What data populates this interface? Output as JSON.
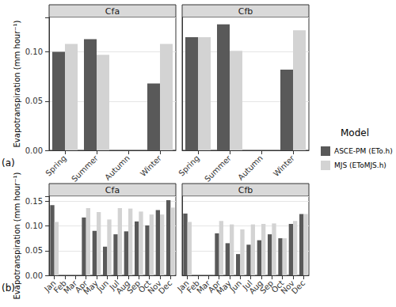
{
  "chart_data": [
    {
      "type": "bar",
      "title": "Cfa",
      "annotations": [
        "(a)"
      ],
      "y_label": "Evapotranspiration (mm hour⁻¹)",
      "legend": "right",
      "legend_title": "Model",
      "grid": true,
      "categories": [
        "Spring",
        "Summer",
        "Autumn",
        "Winter"
      ],
      "series": [
        {
          "name": "ASCE-PM (ETo.h)",
          "color": "#595959",
          "values": [
            0.1,
            0.113,
            null,
            0.068
          ]
        },
        {
          "name": "MJS (EToMJS.h)",
          "color": "#d3d3d3",
          "values": [
            0.108,
            0.097,
            null,
            0.108
          ]
        }
      ],
      "ylim": [
        0,
        0.135
      ],
      "yticks": [
        {
          "value": 0,
          "label": "0.00"
        },
        {
          "value": 0.05,
          "label": "0.05"
        },
        {
          "value": 0.1,
          "label": "0.10"
        }
      ]
    },
    {
      "type": "bar",
      "title": "Cfb",
      "grid": true,
      "categories": [
        "Spring",
        "Summer",
        "Autumn",
        "Winter"
      ],
      "series": [
        {
          "name": "ASCE-PM (ETo.h)",
          "color": "#595959",
          "values": [
            0.115,
            0.128,
            null,
            0.082
          ]
        },
        {
          "name": "MJS (EToMJS.h)",
          "color": "#d3d3d3",
          "values": [
            0.115,
            0.101,
            null,
            0.122
          ]
        }
      ],
      "ylim": [
        0,
        0.135
      ],
      "yticks": [
        {
          "value": 0,
          "label": "0.00"
        },
        {
          "value": 0.05,
          "label": "0.05"
        },
        {
          "value": 0.1,
          "label": "0.10"
        }
      ]
    },
    {
      "type": "bar",
      "title": "Cfa",
      "annotations": [
        "(b)"
      ],
      "y_label": "Evapotranspiration (mm hour⁻¹)",
      "grid": true,
      "categories": [
        "Jan",
        "Feb",
        "Mar",
        "Apr",
        "May",
        "Jun",
        "Jul",
        "Aug",
        "Sep",
        "Oct",
        "Nov",
        "Dec"
      ],
      "series": [
        {
          "name": "ASCE-PM (ETo.h)",
          "color": "#595959",
          "values": [
            0.142,
            null,
            null,
            0.117,
            0.09,
            0.058,
            0.083,
            0.089,
            0.109,
            0.101,
            0.132,
            0.152
          ]
        },
        {
          "name": "MJS (EToMJS.h)",
          "color": "#d3d3d3",
          "values": [
            0.108,
            null,
            null,
            0.136,
            0.128,
            0.113,
            0.136,
            0.135,
            0.129,
            0.123,
            0.123,
            0.137
          ]
        }
      ],
      "ylim": [
        0,
        0.16
      ],
      "yticks": [
        {
          "value": 0,
          "label": "0.00"
        },
        {
          "value": 0.05,
          "label": "0.05"
        },
        {
          "value": 0.1,
          "label": "0.10"
        },
        {
          "value": 0.15,
          "label": "0.15"
        }
      ]
    },
    {
      "type": "bar",
      "title": "Cfb",
      "grid": true,
      "categories": [
        "Jan",
        "Feb",
        "Mar",
        "Apr",
        "May",
        "Jun",
        "Jul",
        "Aug",
        "Sep",
        "Oct",
        "Nov",
        "Dec"
      ],
      "series": [
        {
          "name": "ASCE-PM (ETo.h)",
          "color": "#595959",
          "values": [
            0.125,
            null,
            null,
            0.085,
            0.065,
            0.043,
            0.062,
            0.071,
            0.083,
            0.075,
            0.104,
            0.124
          ]
        },
        {
          "name": "MJS (EToMJS.h)",
          "color": "#d3d3d3",
          "values": [
            0.108,
            null,
            null,
            0.11,
            0.103,
            0.093,
            0.103,
            0.104,
            0.105,
            0.075,
            0.11,
            0.124
          ]
        }
      ],
      "ylim": [
        0,
        0.16
      ],
      "yticks": [
        {
          "value": 0,
          "label": "0.00"
        },
        {
          "value": 0.05,
          "label": "0.05"
        },
        {
          "value": 0.1,
          "label": "0.10"
        },
        {
          "value": 0.15,
          "label": "0.15"
        }
      ]
    }
  ]
}
